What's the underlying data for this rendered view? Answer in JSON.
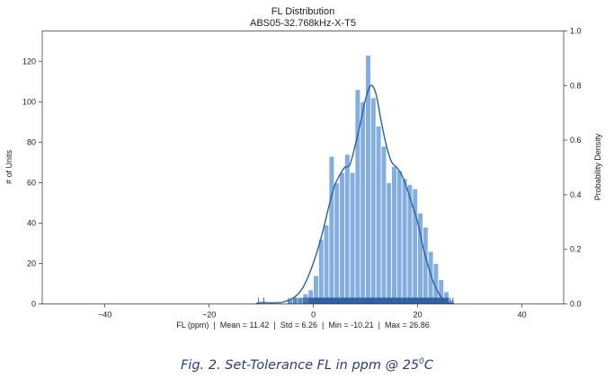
{
  "chart_data": {
    "type": "bar",
    "title": "FL Distribution",
    "subtitle": "ABS05-32.768kHz-X-T5",
    "xlabel": "FL (ppm)  |  Mean = 11.42  |  Std = 6.26  |  Min = -10.21  |  Max = 26.86",
    "ylabel": "# of Units",
    "y2label": "Probability Density",
    "xlim": [
      -52,
      48
    ],
    "ylim": [
      0,
      135
    ],
    "y2lim": [
      0,
      1.0
    ],
    "xticks": [
      -40,
      -20,
      0,
      20,
      40
    ],
    "yticks": [
      0,
      20,
      40,
      60,
      80,
      100,
      120
    ],
    "y2ticks": [
      "0.0",
      "0.2",
      "0.4",
      "0.6",
      "0.8",
      "1.0"
    ],
    "grid": false,
    "bin_width": 1.0,
    "series": [
      {
        "kind": "histogram",
        "bin_starts": [
          -11,
          -10,
          -5,
          -4,
          -3,
          -2,
          -1,
          0,
          1,
          2,
          3,
          4,
          5,
          6,
          7,
          8,
          9,
          10,
          11,
          12,
          13,
          14,
          15,
          16,
          17,
          18,
          19,
          20,
          21,
          22,
          23,
          24,
          25,
          26
        ],
        "values": [
          1,
          1,
          2,
          3,
          3,
          5,
          7,
          14,
          32,
          39,
          73,
          60,
          65,
          74,
          65,
          106,
          100,
          123,
          102,
          88,
          78,
          60,
          68,
          66,
          62,
          59,
          57,
          45,
          38,
          26,
          20,
          12,
          6,
          2
        ],
        "color": "#84aee0"
      },
      {
        "kind": "kde",
        "x": [
          -11,
          -10,
          -8,
          -6,
          -5,
          -4,
          -3,
          -2,
          -1,
          0,
          1,
          2,
          3,
          4,
          5,
          6,
          7,
          8,
          9,
          10,
          11,
          12,
          13,
          14,
          15,
          16,
          17,
          18,
          19,
          20,
          21,
          22,
          23,
          24,
          25,
          26,
          27
        ],
        "density": [
          0.0,
          0.005,
          0.004,
          0.006,
          0.012,
          0.02,
          0.035,
          0.06,
          0.1,
          0.15,
          0.21,
          0.28,
          0.36,
          0.43,
          0.47,
          0.5,
          0.51,
          0.58,
          0.66,
          0.75,
          0.8,
          0.77,
          0.67,
          0.58,
          0.52,
          0.5,
          0.47,
          0.42,
          0.36,
          0.3,
          0.21,
          0.14,
          0.08,
          0.04,
          0.015,
          0.004,
          0.0
        ],
        "color": "#2e5fa3"
      }
    ]
  },
  "caption": {
    "text": "Fig. 2.  Set-Tolerance FL in ppm @ 25",
    "superscript": "0",
    "suffix": "C",
    "color": "#2c3e78"
  }
}
